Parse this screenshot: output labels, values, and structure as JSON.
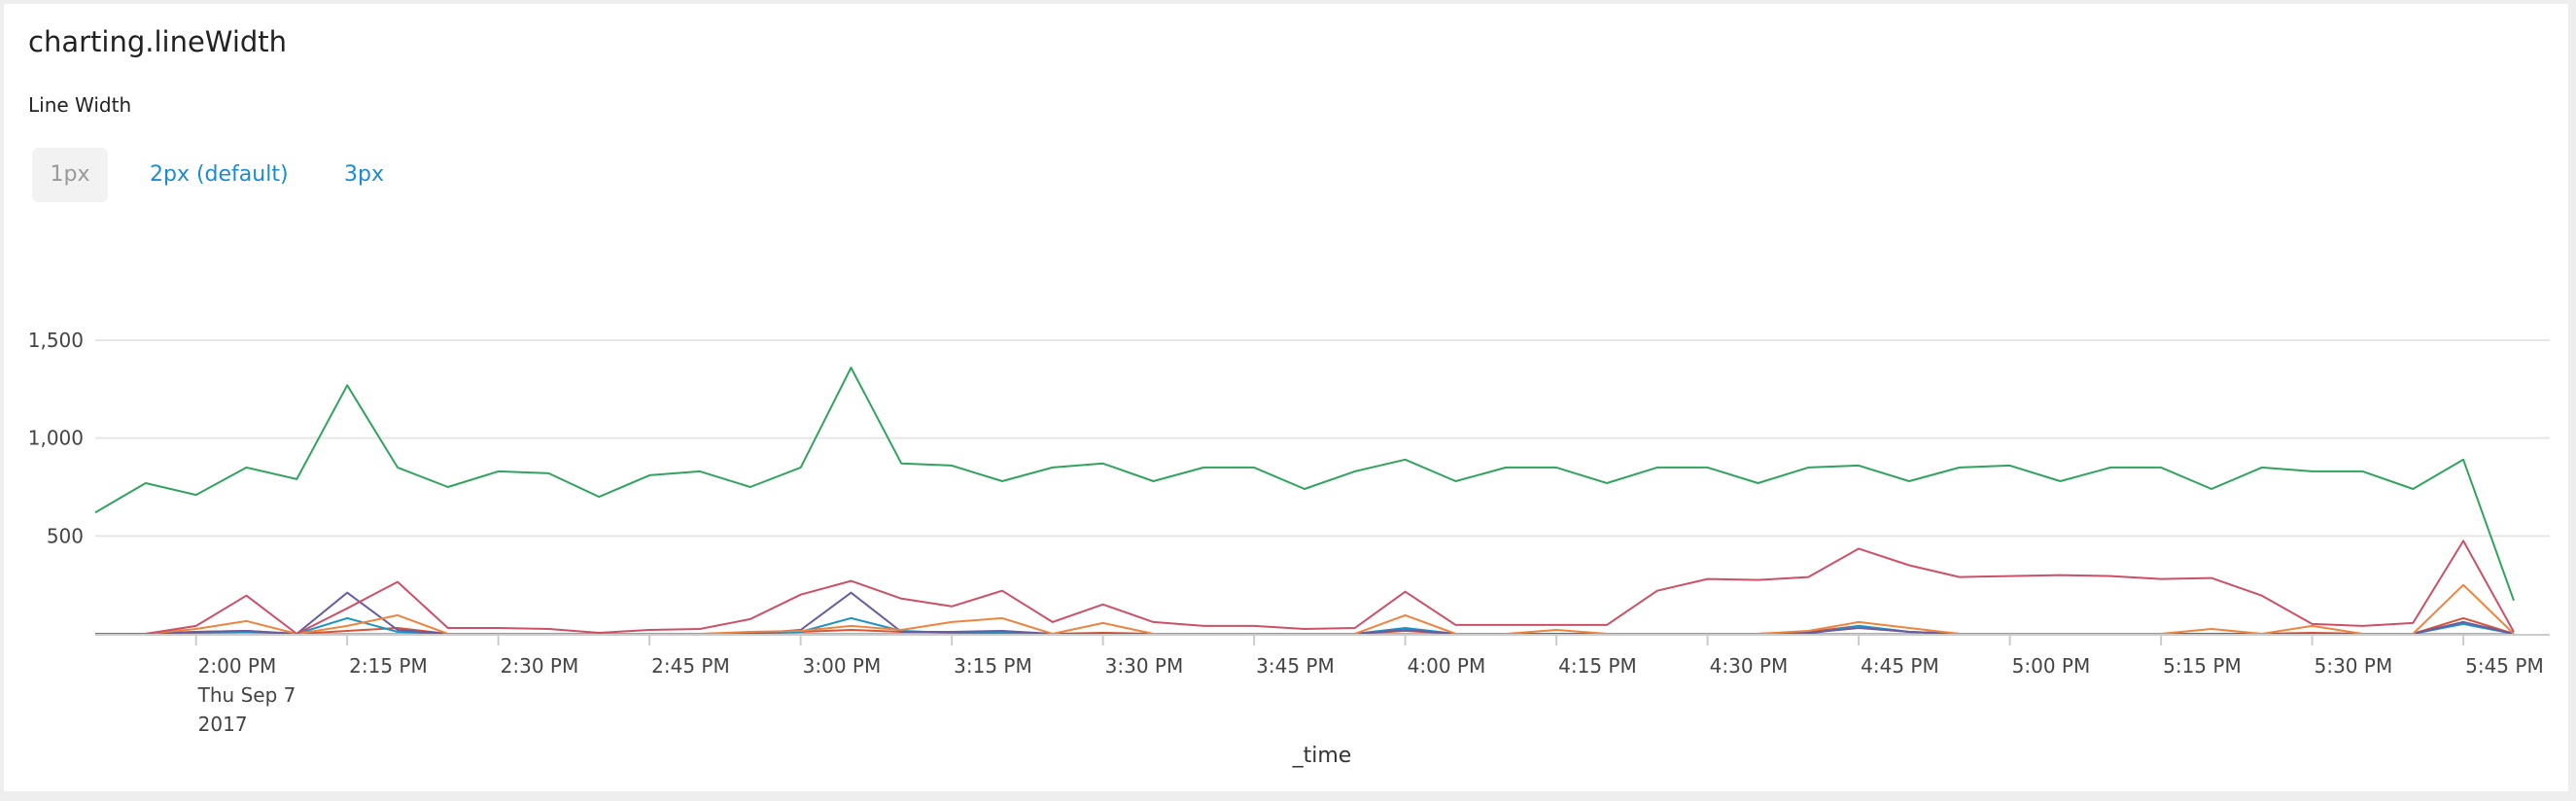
{
  "title": "charting.lineWidth",
  "line_width": {
    "label": "Line Width",
    "options": [
      "1px",
      "2px (default)",
      "3px"
    ],
    "selected": "1px"
  },
  "chart_data": {
    "type": "line",
    "title": "",
    "xlabel": "_time",
    "ylabel": "",
    "ylim": [
      0,
      1500
    ],
    "yticks": [
      "500",
      "1,000",
      "1,500"
    ],
    "ytick_values": [
      500,
      1000,
      1500
    ],
    "grid": true,
    "legend": "none",
    "x_start": "1:50 PM",
    "x_interval_minutes": 5,
    "x_tick_labels": [
      "2:00 PM",
      "2:15 PM",
      "2:30 PM",
      "2:45 PM",
      "3:00 PM",
      "3:15 PM",
      "3:30 PM",
      "3:45 PM",
      "4:00 PM",
      "4:15 PM",
      "4:30 PM",
      "4:45 PM",
      "5:00 PM",
      "5:15 PM",
      "5:30 PM",
      "5:45 PM"
    ],
    "x_first_tick_date": [
      "Thu Sep 7",
      "2017"
    ],
    "series": [
      {
        "color": "#31a35f",
        "values": [
          620,
          770,
          710,
          850,
          790,
          1270,
          850,
          750,
          830,
          820,
          700,
          810,
          830,
          750,
          850,
          1360,
          870,
          860,
          780,
          850,
          870,
          780,
          850,
          850,
          740,
          830,
          890,
          780,
          850,
          850,
          770,
          850,
          850,
          770,
          850,
          860,
          780,
          850,
          860,
          780,
          850,
          850,
          740,
          850,
          830,
          830,
          740,
          890,
          170
        ]
      },
      {
        "color": "#cc5068",
        "values": [
          0,
          0,
          40,
          195,
          0,
          130,
          265,
          30,
          30,
          25,
          5,
          20,
          25,
          75,
          200,
          270,
          180,
          140,
          220,
          60,
          150,
          60,
          40,
          40,
          25,
          30,
          215,
          45,
          45,
          45,
          45,
          220,
          280,
          275,
          290,
          435,
          350,
          290,
          295,
          300,
          295,
          280,
          285,
          195,
          50,
          40,
          55,
          475,
          10
        ]
      },
      {
        "color": "#ed8440",
        "values": [
          0,
          0,
          25,
          65,
          0,
          40,
          95,
          0,
          0,
          0,
          0,
          0,
          0,
          10,
          15,
          40,
          20,
          60,
          80,
          0,
          55,
          0,
          0,
          0,
          0,
          0,
          95,
          0,
          0,
          20,
          0,
          0,
          0,
          0,
          15,
          60,
          30,
          0,
          0,
          0,
          0,
          0,
          25,
          0,
          40,
          0,
          0,
          250,
          0
        ]
      },
      {
        "color": "#6a5c9e",
        "values": [
          0,
          0,
          10,
          15,
          0,
          210,
          20,
          0,
          0,
          0,
          0,
          0,
          0,
          0,
          20,
          210,
          10,
          10,
          15,
          0,
          0,
          0,
          0,
          0,
          0,
          0,
          20,
          0,
          0,
          0,
          0,
          0,
          0,
          0,
          5,
          30,
          10,
          0,
          0,
          0,
          0,
          0,
          0,
          0,
          0,
          0,
          0,
          60,
          0
        ]
      },
      {
        "color": "#1e93c6",
        "values": [
          0,
          0,
          5,
          10,
          0,
          80,
          10,
          0,
          0,
          0,
          0,
          0,
          0,
          0,
          10,
          80,
          15,
          5,
          5,
          0,
          0,
          0,
          0,
          0,
          0,
          0,
          30,
          0,
          0,
          0,
          0,
          0,
          0,
          0,
          0,
          40,
          10,
          0,
          0,
          0,
          0,
          0,
          0,
          0,
          0,
          0,
          0,
          50,
          0
        ]
      },
      {
        "color": "#d6563c",
        "values": [
          0,
          0,
          10,
          15,
          0,
          15,
          30,
          0,
          0,
          0,
          0,
          0,
          0,
          0,
          10,
          20,
          10,
          10,
          10,
          0,
          5,
          0,
          0,
          0,
          0,
          0,
          15,
          0,
          0,
          0,
          0,
          0,
          0,
          0,
          10,
          40,
          10,
          0,
          0,
          0,
          0,
          0,
          0,
          0,
          5,
          0,
          0,
          80,
          0
        ]
      },
      {
        "color": "#a2cc3e",
        "values": [
          0,
          0,
          0,
          0,
          0,
          0,
          0,
          0,
          0,
          0,
          0,
          0,
          0,
          0,
          0,
          0,
          0,
          0,
          0,
          0,
          0,
          0,
          0,
          0,
          0,
          0,
          0,
          0,
          0,
          0,
          0,
          0,
          0,
          0,
          0,
          0,
          0,
          0,
          0,
          0,
          0,
          0,
          0,
          0,
          0,
          0,
          0,
          0,
          0
        ]
      }
    ]
  }
}
